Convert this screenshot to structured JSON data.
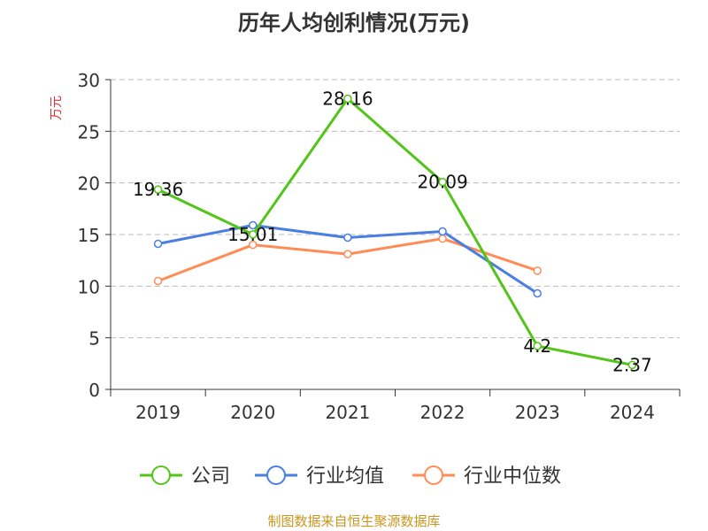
{
  "chart_data": {
    "type": "line",
    "title": "历年人均创利情况(万元)",
    "ylabel": "万元",
    "xlabel": "",
    "categories": [
      "2019",
      "2020",
      "2021",
      "2022",
      "2023",
      "2024"
    ],
    "ylim": [
      0,
      30
    ],
    "yticks": [
      0,
      5,
      10,
      15,
      20,
      25,
      30
    ],
    "grid": true,
    "legend_position": "bottom",
    "series": [
      {
        "name": "公司",
        "color": "#52c41a",
        "values": [
          19.36,
          15.01,
          28.16,
          20.09,
          4.2,
          2.37
        ],
        "labels": [
          "19.36",
          "15.01",
          "28.16",
          "20.09",
          "4.2",
          "2.37"
        ]
      },
      {
        "name": "行业均值",
        "color": "#4a7ee0",
        "values": [
          14.1,
          15.9,
          14.7,
          15.3,
          9.3,
          null
        ]
      },
      {
        "name": "行业中位数",
        "color": "#ff8c55",
        "values": [
          10.5,
          14.0,
          13.1,
          14.6,
          11.5,
          null
        ]
      }
    ]
  },
  "footer": {
    "source": "制图数据来自恒生聚源数据库"
  }
}
